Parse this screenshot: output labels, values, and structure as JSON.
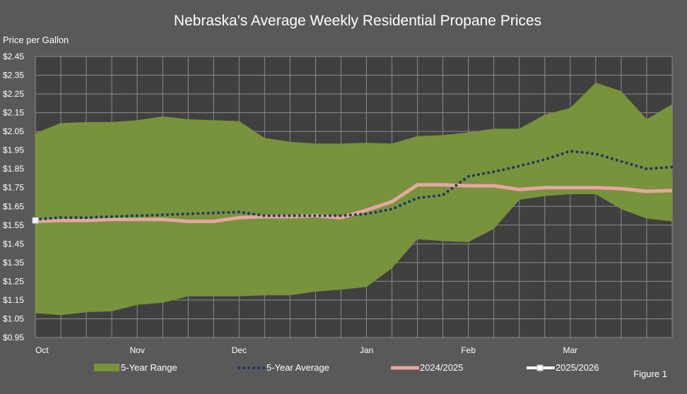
{
  "chart_data": {
    "type": "area",
    "title": "Nebraska's Average Weekly Residential Propane Prices",
    "ylabel": "Price per Gallon",
    "xlabel": "",
    "ylim": [
      0.95,
      2.45
    ],
    "yticks": [
      0.95,
      1.05,
      1.15,
      1.25,
      1.35,
      1.45,
      1.55,
      1.65,
      1.75,
      1.85,
      1.95,
      2.05,
      2.15,
      2.25,
      2.35,
      2.45
    ],
    "ytick_labels": [
      "$0.95",
      "$1.05",
      "$1.15",
      "$1.25",
      "$1.35",
      "$1.45",
      "$1.55",
      "$1.65",
      "$1.75",
      "$1.85",
      "$1.95",
      "$2.05",
      "$2.15",
      "$2.25",
      "$2.35",
      "$2.45"
    ],
    "x_count": 26,
    "x_tick_labels": [
      {
        "index": 0,
        "label": "Oct"
      },
      {
        "index": 4,
        "label": "Nov"
      },
      {
        "index": 8,
        "label": "Dec"
      },
      {
        "index": 13,
        "label": "Jan"
      },
      {
        "index": 17,
        "label": "Feb"
      },
      {
        "index": 21,
        "label": "Mar"
      }
    ],
    "grid": true,
    "legend_position": "bottom",
    "range_series": {
      "name": "5-Year Range",
      "color": "#77933c",
      "high": [
        2.04,
        2.095,
        2.1,
        2.1,
        2.11,
        2.13,
        2.115,
        2.11,
        2.105,
        2.015,
        1.995,
        1.985,
        1.985,
        1.99,
        1.985,
        2.025,
        2.03,
        2.045,
        2.065,
        2.065,
        2.14,
        2.175,
        2.31,
        2.265,
        2.115,
        2.195
      ],
      "low": [
        1.08,
        1.07,
        1.085,
        1.09,
        1.125,
        1.135,
        1.17,
        1.17,
        1.17,
        1.175,
        1.175,
        1.195,
        1.205,
        1.22,
        1.32,
        1.475,
        1.465,
        1.46,
        1.53,
        1.685,
        1.705,
        1.715,
        1.715,
        1.635,
        1.585,
        1.57
      ]
    },
    "series": [
      {
        "name": "5-Year Average",
        "color": "#1f3864",
        "style": "dotted",
        "values": [
          1.58,
          1.59,
          1.59,
          1.595,
          1.6,
          1.605,
          1.61,
          1.615,
          1.62,
          1.6,
          1.6,
          1.6,
          1.6,
          1.61,
          1.635,
          1.695,
          1.71,
          1.81,
          1.835,
          1.865,
          1.9,
          1.945,
          1.93,
          1.89,
          1.85,
          1.86
        ]
      },
      {
        "name": "2024/2025",
        "color": "#e6a6a0",
        "style": "solid",
        "values": [
          1.57,
          1.575,
          1.575,
          1.58,
          1.58,
          1.58,
          1.57,
          1.57,
          1.59,
          1.595,
          1.595,
          1.6,
          1.59,
          1.63,
          1.675,
          1.765,
          1.765,
          1.76,
          1.76,
          1.74,
          1.75,
          1.75,
          1.75,
          1.745,
          1.73,
          1.735
        ]
      },
      {
        "name": "2025/2026",
        "color": "#ffffff",
        "style": "solid-marker",
        "values": [
          1.575
        ]
      }
    ],
    "figure_label": "Figure 1"
  }
}
